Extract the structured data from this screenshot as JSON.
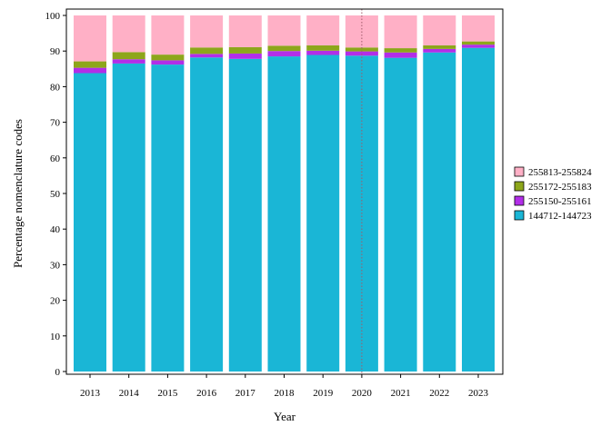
{
  "chart_data": {
    "type": "bar",
    "stacked": true,
    "xlabel": "Year",
    "ylabel": "Percentage nomenclature codes",
    "ylim": [
      0,
      100
    ],
    "yticks": [
      0,
      10,
      20,
      30,
      40,
      50,
      60,
      70,
      80,
      90,
      100
    ],
    "categories": [
      "2013",
      "2014",
      "2015",
      "2016",
      "2017",
      "2018",
      "2019",
      "2020",
      "2021",
      "2022",
      "2023"
    ],
    "series": [
      {
        "name": "144712-144723",
        "color": "#1ab6d6",
        "values": [
          83.8,
          86.5,
          86.2,
          88.2,
          87.8,
          88.5,
          88.9,
          88.7,
          88.1,
          89.6,
          90.9
        ]
      },
      {
        "name": "255150-255161",
        "color": "#b22ee8",
        "values": [
          1.5,
          1.2,
          1.2,
          1.0,
          1.5,
          1.5,
          1.2,
          1.2,
          1.5,
          1.0,
          0.9
        ]
      },
      {
        "name": "255172-255183",
        "color": "#8da61b",
        "values": [
          1.8,
          2.0,
          1.6,
          1.8,
          1.8,
          1.5,
          1.5,
          1.1,
          1.2,
          1.0,
          0.9
        ]
      },
      {
        "name": "255813-255824",
        "color": "#ffb0c6",
        "values": [
          12.9,
          10.3,
          11.0,
          9.0,
          8.9,
          8.5,
          8.4,
          9.0,
          9.2,
          8.4,
          7.3
        ]
      }
    ],
    "reference_line": {
      "x": "2020",
      "style": "dotted",
      "color": "#a05a6a"
    },
    "legend": {
      "position": "right",
      "order": [
        "255813-255824",
        "255172-255183",
        "255150-255161",
        "144712-144723"
      ]
    },
    "grid": false
  }
}
